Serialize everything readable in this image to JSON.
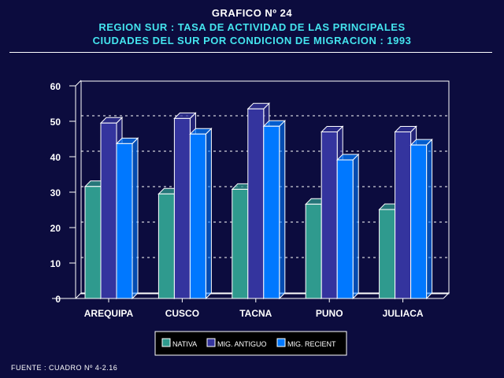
{
  "title": "GRAFICO Nº 24",
  "subtitle_line1": "REGION SUR : TASA DE ACTIVIDAD DE LAS PRINCIPALES",
  "subtitle_line2": "CIUDADES DEL SUR POR CONDICION DE MIGRACION : 1993",
  "footer": "FUENTE : CUADRO Nº 4-2.16",
  "chart_data": {
    "type": "bar",
    "title": "GRAFICO Nº 24",
    "xlabel": "",
    "ylabel": "",
    "ylim": [
      0,
      60
    ],
    "yticks": [
      "0",
      "10",
      "20",
      "30",
      "40",
      "50",
      "60"
    ],
    "grid": true,
    "legend_position": "bottom",
    "categories": [
      "AREQUIPA",
      "CUSCO",
      "TACNA",
      "PUNO",
      "JULIACA"
    ],
    "series": [
      {
        "name": "NATIVA",
        "color": "#2f9a8e",
        "values": [
          31.6,
          29.5,
          30.8,
          26.6,
          25.1
        ]
      },
      {
        "name": "MIG. ANTIGUO",
        "color": "#34349e",
        "values": [
          49.5,
          50.8,
          53.5,
          47.0,
          47.0
        ]
      },
      {
        "name": "MIG. RECIENT",
        "color": "#0078ff",
        "values": [
          43.7,
          46.4,
          48.6,
          39.1,
          43.3
        ]
      }
    ]
  }
}
